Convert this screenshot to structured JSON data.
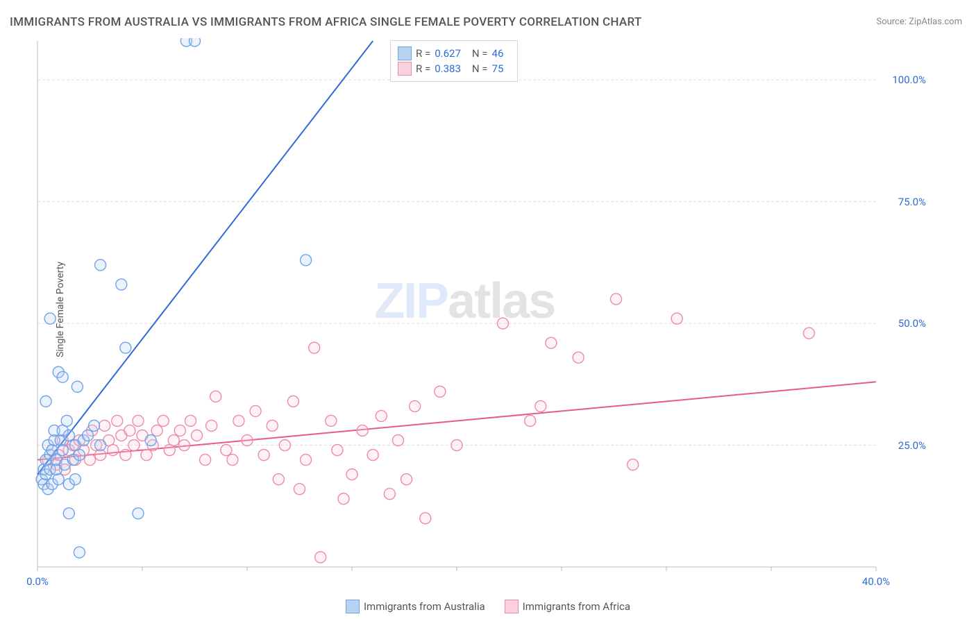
{
  "title": "IMMIGRANTS FROM AUSTRALIA VS IMMIGRANTS FROM AFRICA SINGLE FEMALE POVERTY CORRELATION CHART",
  "source": "Source: ZipAtlas.com",
  "ylabel": "Single Female Poverty",
  "watermark": {
    "z": "ZIP",
    "rest": "atlas"
  },
  "chart": {
    "type": "scatter-with-regression",
    "background": "#ffffff",
    "grid_color": "#dddddd",
    "grid_dash": "4,3",
    "axis_color": "#bbbbbb",
    "tick_color": "#bbbbbb",
    "label_color": "#2e6bd6",
    "text_color": "#555555",
    "xlim": [
      0,
      40
    ],
    "ylim": [
      0,
      108
    ],
    "x_ticks": [
      0,
      5,
      10,
      15,
      20,
      25,
      30,
      35,
      40
    ],
    "x_tick_labels": {
      "0": "0.0%",
      "40": "40.0%"
    },
    "y_ticks": [
      25,
      50,
      75,
      100
    ],
    "y_tick_labels": {
      "25": "25.0%",
      "50": "50.0%",
      "75": "75.0%",
      "100": "100.0%"
    },
    "marker_radius": 8,
    "marker_stroke_width": 1.4,
    "marker_fill_opacity": 0.28,
    "line_width": 2,
    "series": [
      {
        "name": "Immigrants from Australia",
        "color_stroke": "#6fa3e8",
        "color_fill": "#b7d2f3",
        "line_color": "#2e6bd6",
        "R": "0.627",
        "N": "46",
        "regression": {
          "x1": 0,
          "y1": 19,
          "x2": 16,
          "y2": 108
        },
        "points": [
          [
            0.2,
            18
          ],
          [
            0.3,
            20
          ],
          [
            0.3,
            17
          ],
          [
            0.4,
            22
          ],
          [
            0.4,
            19
          ],
          [
            0.5,
            25
          ],
          [
            0.5,
            16
          ],
          [
            0.6,
            23
          ],
          [
            0.6,
            20
          ],
          [
            0.7,
            17
          ],
          [
            0.7,
            24
          ],
          [
            0.8,
            26
          ],
          [
            0.8,
            28
          ],
          [
            0.9,
            20
          ],
          [
            0.9,
            22
          ],
          [
            1.0,
            18
          ],
          [
            1.1,
            26
          ],
          [
            1.2,
            24
          ],
          [
            1.2,
            28
          ],
          [
            1.3,
            21
          ],
          [
            1.4,
            30
          ],
          [
            1.5,
            17
          ],
          [
            1.5,
            27
          ],
          [
            1.7,
            22
          ],
          [
            1.8,
            25
          ],
          [
            1.9,
            37
          ],
          [
            2.0,
            23
          ],
          [
            0.4,
            34
          ],
          [
            0.6,
            51
          ],
          [
            1.0,
            40
          ],
          [
            1.2,
            39
          ],
          [
            1.5,
            11
          ],
          [
            2.2,
            26
          ],
          [
            2.4,
            27
          ],
          [
            2.7,
            29
          ],
          [
            3.0,
            25
          ],
          [
            3.0,
            62
          ],
          [
            4.0,
            58
          ],
          [
            4.2,
            45
          ],
          [
            5.4,
            26
          ],
          [
            4.8,
            11
          ],
          [
            7.1,
            108
          ],
          [
            7.5,
            108
          ],
          [
            12.8,
            63
          ],
          [
            2.0,
            3
          ],
          [
            1.8,
            18
          ]
        ]
      },
      {
        "name": "Immigrants from Africa",
        "color_stroke": "#ee8aa6",
        "color_fill": "#fad1dc",
        "line_color": "#e75a8a",
        "R": "0.383",
        "N": "75",
        "regression": {
          "x1": 0,
          "y1": 22,
          "x2": 40,
          "y2": 38
        },
        "points": [
          [
            0.5,
            22
          ],
          [
            0.7,
            24
          ],
          [
            0.9,
            21
          ],
          [
            1.0,
            23
          ],
          [
            1.2,
            26
          ],
          [
            1.3,
            20
          ],
          [
            1.5,
            24
          ],
          [
            1.7,
            25
          ],
          [
            1.8,
            22
          ],
          [
            2.0,
            26
          ],
          [
            2.2,
            24
          ],
          [
            2.5,
            22
          ],
          [
            2.6,
            28
          ],
          [
            2.8,
            25
          ],
          [
            3.0,
            23
          ],
          [
            3.2,
            29
          ],
          [
            3.4,
            26
          ],
          [
            3.6,
            24
          ],
          [
            3.8,
            30
          ],
          [
            4.0,
            27
          ],
          [
            4.2,
            23
          ],
          [
            4.4,
            28
          ],
          [
            4.6,
            25
          ],
          [
            4.8,
            30
          ],
          [
            5.0,
            27
          ],
          [
            5.2,
            23
          ],
          [
            5.5,
            25
          ],
          [
            5.7,
            28
          ],
          [
            6.0,
            30
          ],
          [
            6.3,
            24
          ],
          [
            6.5,
            26
          ],
          [
            6.8,
            28
          ],
          [
            7.0,
            25
          ],
          [
            7.3,
            30
          ],
          [
            7.6,
            27
          ],
          [
            8.0,
            22
          ],
          [
            8.3,
            29
          ],
          [
            8.5,
            35
          ],
          [
            9.0,
            24
          ],
          [
            9.3,
            22
          ],
          [
            9.6,
            30
          ],
          [
            10.0,
            26
          ],
          [
            10.4,
            32
          ],
          [
            10.8,
            23
          ],
          [
            11.2,
            29
          ],
          [
            11.5,
            18
          ],
          [
            11.8,
            25
          ],
          [
            12.2,
            34
          ],
          [
            12.5,
            16
          ],
          [
            12.8,
            22
          ],
          [
            13.2,
            45
          ],
          [
            13.5,
            2
          ],
          [
            14.0,
            30
          ],
          [
            14.3,
            24
          ],
          [
            14.6,
            14
          ],
          [
            15.0,
            19
          ],
          [
            15.5,
            28
          ],
          [
            16.0,
            23
          ],
          [
            16.4,
            31
          ],
          [
            16.8,
            15
          ],
          [
            17.2,
            26
          ],
          [
            17.6,
            18
          ],
          [
            18.0,
            33
          ],
          [
            18.5,
            10
          ],
          [
            19.2,
            36
          ],
          [
            20.0,
            25
          ],
          [
            22.2,
            50
          ],
          [
            23.5,
            30
          ],
          [
            24.5,
            46
          ],
          [
            25.8,
            43
          ],
          [
            27.6,
            55
          ],
          [
            28.4,
            21
          ],
          [
            30.5,
            51
          ],
          [
            36.8,
            48
          ],
          [
            24.0,
            33
          ]
        ]
      }
    ]
  },
  "legend_top": {
    "rows": [
      {
        "series": 0,
        "r_label": "R =",
        "n_label": "N ="
      },
      {
        "series": 1,
        "r_label": "R =",
        "n_label": "N ="
      }
    ]
  },
  "legend_bottom": [
    {
      "series": 0
    },
    {
      "series": 1
    }
  ]
}
